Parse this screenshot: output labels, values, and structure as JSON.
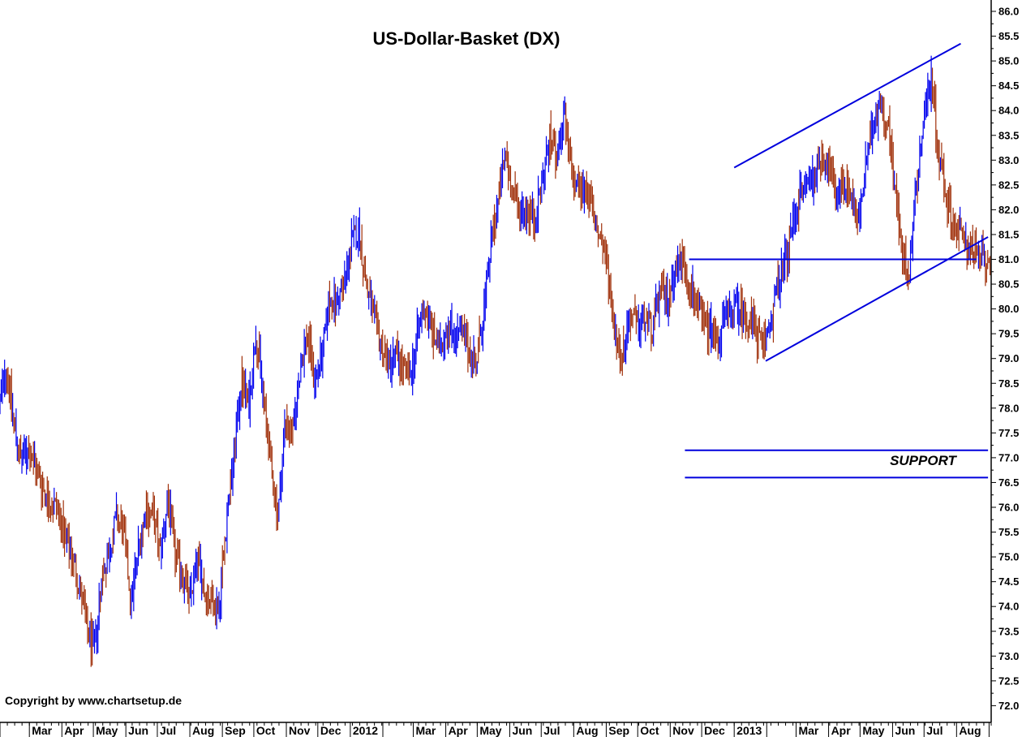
{
  "chart_data": {
    "type": "line",
    "title": "US-Dollar-Basket  (DX)",
    "copyright": "Copyright by www.chartsetup.de",
    "annotation": "SUPPORT",
    "y_axis": {
      "position": "right",
      "ylim": [
        71.75,
        86.15
      ],
      "ticks": [
        "72.0",
        "72.5",
        "73.0",
        "73.5",
        "74.0",
        "74.5",
        "75.0",
        "75.5",
        "76.0",
        "76.5",
        "77.0",
        "77.5",
        "78.0",
        "78.5",
        "79.0",
        "79.5",
        "80.0",
        "80.5",
        "81.0",
        "81.5",
        "82.0",
        "82.5",
        "83.0",
        "83.5",
        "84.0",
        "84.5",
        "85.0",
        "85.5",
        "86.0"
      ]
    },
    "x_axis": {
      "months": [
        {
          "label": "Mar"
        },
        {
          "label": "Apr"
        },
        {
          "label": "May"
        },
        {
          "label": "Jun"
        },
        {
          "label": "Jul"
        },
        {
          "label": "Aug"
        },
        {
          "label": "Sep"
        },
        {
          "label": "Oct"
        },
        {
          "label": "Nov"
        },
        {
          "label": "Dec"
        },
        {
          "label": "2012"
        },
        {
          "label": "Mar"
        },
        {
          "label": "Apr"
        },
        {
          "label": "May"
        },
        {
          "label": "Jun"
        },
        {
          "label": "Jul"
        },
        {
          "label": "Aug"
        },
        {
          "label": "Sep"
        },
        {
          "label": "Oct"
        },
        {
          "label": "Nov"
        },
        {
          "label": "Dec"
        },
        {
          "label": "2013"
        },
        {
          "label": "Mar"
        },
        {
          "label": "Apr"
        },
        {
          "label": "May"
        },
        {
          "label": "Jun"
        },
        {
          "label": "Jul"
        },
        {
          "label": "Aug"
        }
      ]
    },
    "series": [
      {
        "color_up": "#0000ee",
        "color_down": "#a0300a",
        "points": [
          [
            "2011-02-01",
            78.1
          ],
          [
            "2011-02-07",
            78.9
          ],
          [
            "2011-02-14",
            77.7
          ],
          [
            "2011-02-21",
            76.9
          ],
          [
            "2011-02-28",
            77.2
          ],
          [
            "2011-03-07",
            76.8
          ],
          [
            "2011-03-14",
            76.4
          ],
          [
            "2011-03-21",
            76.1
          ],
          [
            "2011-03-28",
            76.0
          ],
          [
            "2011-04-04",
            75.3
          ],
          [
            "2011-04-11",
            75.0
          ],
          [
            "2011-04-18",
            74.4
          ],
          [
            "2011-04-25",
            73.5
          ],
          [
            "2011-05-02",
            73.1
          ],
          [
            "2011-05-09",
            74.6
          ],
          [
            "2011-05-16",
            75.1
          ],
          [
            "2011-05-23",
            75.8
          ],
          [
            "2011-05-30",
            75.5
          ],
          [
            "2011-06-06",
            74.1
          ],
          [
            "2011-06-13",
            75.2
          ],
          [
            "2011-06-20",
            76.0
          ],
          [
            "2011-06-27",
            75.8
          ],
          [
            "2011-07-04",
            75.1
          ],
          [
            "2011-07-11",
            76.2
          ],
          [
            "2011-07-18",
            75.0
          ],
          [
            "2011-07-25",
            74.7
          ],
          [
            "2011-08-01",
            74.1
          ],
          [
            "2011-08-08",
            75.0
          ],
          [
            "2011-08-15",
            74.3
          ],
          [
            "2011-08-22",
            74.1
          ],
          [
            "2011-08-29",
            74.0
          ],
          [
            "2011-09-05",
            75.8
          ],
          [
            "2011-09-12",
            77.0
          ],
          [
            "2011-09-19",
            78.6
          ],
          [
            "2011-09-26",
            78.0
          ],
          [
            "2011-10-03",
            79.6
          ],
          [
            "2011-10-10",
            78.2
          ],
          [
            "2011-10-17",
            76.9
          ],
          [
            "2011-10-24",
            75.8
          ],
          [
            "2011-10-31",
            77.8
          ],
          [
            "2011-11-07",
            77.4
          ],
          [
            "2011-11-14",
            78.8
          ],
          [
            "2011-11-21",
            79.5
          ],
          [
            "2011-11-28",
            78.6
          ],
          [
            "2011-12-05",
            79.0
          ],
          [
            "2011-12-12",
            80.2
          ],
          [
            "2011-12-19",
            80.1
          ],
          [
            "2011-12-26",
            80.5
          ],
          [
            "2012-01-02",
            81.3
          ],
          [
            "2012-01-09",
            81.6
          ],
          [
            "2012-01-16",
            80.5
          ],
          [
            "2012-01-23",
            79.8
          ],
          [
            "2012-01-30",
            79.3
          ],
          [
            "2012-02-06",
            78.9
          ],
          [
            "2012-02-13",
            79.1
          ],
          [
            "2012-02-20",
            78.8
          ],
          [
            "2012-02-27",
            78.6
          ],
          [
            "2012-03-05",
            79.5
          ],
          [
            "2012-03-12",
            80.1
          ],
          [
            "2012-03-19",
            79.5
          ],
          [
            "2012-03-26",
            79.2
          ],
          [
            "2012-04-02",
            79.7
          ],
          [
            "2012-04-09",
            79.5
          ],
          [
            "2012-04-16",
            79.5
          ],
          [
            "2012-04-23",
            79.2
          ],
          [
            "2012-04-30",
            78.9
          ],
          [
            "2012-05-07",
            79.9
          ],
          [
            "2012-05-14",
            81.3
          ],
          [
            "2012-05-21",
            82.2
          ],
          [
            "2012-05-28",
            83.1
          ],
          [
            "2012-06-04",
            82.3
          ],
          [
            "2012-06-11",
            82.0
          ],
          [
            "2012-06-18",
            82.0
          ],
          [
            "2012-06-25",
            81.8
          ],
          [
            "2012-07-02",
            82.6
          ],
          [
            "2012-07-09",
            83.4
          ],
          [
            "2012-07-16",
            83.1
          ],
          [
            "2012-07-23",
            83.8
          ],
          [
            "2012-07-30",
            82.7
          ],
          [
            "2012-08-06",
            82.4
          ],
          [
            "2012-08-13",
            82.5
          ],
          [
            "2012-08-20",
            81.8
          ],
          [
            "2012-08-27",
            81.4
          ],
          [
            "2012-09-03",
            80.7
          ],
          [
            "2012-09-10",
            79.4
          ],
          [
            "2012-09-17",
            79.1
          ],
          [
            "2012-09-24",
            79.9
          ],
          [
            "2012-10-01",
            79.6
          ],
          [
            "2012-10-08",
            79.8
          ],
          [
            "2012-10-15",
            79.6
          ],
          [
            "2012-10-22",
            80.3
          ],
          [
            "2012-10-29",
            80.2
          ],
          [
            "2012-11-05",
            80.8
          ],
          [
            "2012-11-12",
            81.0
          ],
          [
            "2012-11-19",
            80.5
          ],
          [
            "2012-11-26",
            80.1
          ],
          [
            "2012-12-03",
            79.7
          ],
          [
            "2012-12-10",
            79.6
          ],
          [
            "2012-12-17",
            79.4
          ],
          [
            "2012-12-24",
            79.8
          ],
          [
            "2012-12-31",
            80.0
          ],
          [
            "2013-01-07",
            80.0
          ],
          [
            "2013-01-14",
            79.8
          ],
          [
            "2013-01-21",
            79.6
          ],
          [
            "2013-01-28",
            79.2
          ],
          [
            "2013-02-04",
            79.7
          ],
          [
            "2013-02-11",
            80.4
          ],
          [
            "2013-02-18",
            80.9
          ],
          [
            "2013-02-25",
            81.6
          ],
          [
            "2013-03-04",
            82.3
          ],
          [
            "2013-03-11",
            82.5
          ],
          [
            "2013-03-18",
            82.7
          ],
          [
            "2013-03-25",
            83.1
          ],
          [
            "2013-04-01",
            82.9
          ],
          [
            "2013-04-08",
            82.2
          ],
          [
            "2013-04-15",
            82.6
          ],
          [
            "2013-04-22",
            82.4
          ],
          [
            "2013-04-29",
            81.7
          ],
          [
            "2013-05-06",
            82.8
          ],
          [
            "2013-05-13",
            83.6
          ],
          [
            "2013-05-20",
            84.2
          ],
          [
            "2013-05-27",
            83.8
          ],
          [
            "2013-06-03",
            82.6
          ],
          [
            "2013-06-10",
            81.0
          ],
          [
            "2013-06-17",
            80.8
          ],
          [
            "2013-06-24",
            82.6
          ],
          [
            "2013-07-01",
            83.9
          ],
          [
            "2013-07-08",
            84.7
          ],
          [
            "2013-07-15",
            83.1
          ],
          [
            "2013-07-22",
            82.3
          ],
          [
            "2013-07-29",
            81.7
          ],
          [
            "2013-08-05",
            81.5
          ],
          [
            "2013-08-12",
            81.3
          ],
          [
            "2013-08-19",
            81.1
          ],
          [
            "2013-08-26",
            81.0
          ]
        ]
      }
    ],
    "trendlines": [
      {
        "name": "upper channel",
        "from": [
          "2013-01-01",
          82.85
        ],
        "to": [
          "2013-08-05",
          85.35
        ]
      },
      {
        "name": "lower channel",
        "from": [
          "2013-01-31",
          78.95
        ],
        "to": [
          "2013-08-31",
          81.45
        ]
      },
      {
        "name": "horizontal resistance",
        "from": [
          "2012-11-19",
          81.0
        ],
        "to": [
          "2013-08-20",
          81.0
        ]
      },
      {
        "name": "support upper",
        "from": [
          "2012-11-15",
          77.15
        ],
        "to": [
          "2013-08-31",
          77.15
        ]
      },
      {
        "name": "support lower",
        "from": [
          "2012-11-15",
          76.6
        ],
        "to": [
          "2013-08-31",
          76.6
        ]
      }
    ],
    "colors": {
      "up": "#0000ee",
      "down": "#a0300a",
      "lines": "#0000dd",
      "axis": "#000000"
    },
    "grid": false,
    "legend": "none"
  }
}
